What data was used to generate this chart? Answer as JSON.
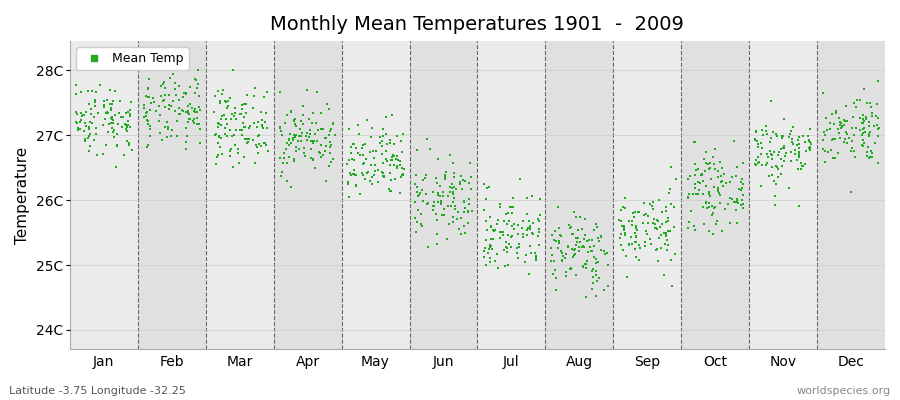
{
  "title": "Monthly Mean Temperatures 1901  -  2009",
  "ylabel": "Temperature",
  "bottom_left": "Latitude -3.75 Longitude -32.25",
  "bottom_right": "worldspecies.org",
  "legend_label": "Mean Temp",
  "yticks": [
    24,
    25,
    26,
    27,
    28
  ],
  "ylabels": [
    "24C",
    "25C",
    "26C",
    "27C",
    "28C"
  ],
  "ylim": [
    23.7,
    28.45
  ],
  "months": [
    "Jan",
    "Feb",
    "Mar",
    "Apr",
    "May",
    "Jun",
    "Jul",
    "Aug",
    "Sep",
    "Oct",
    "Nov",
    "Dec"
  ],
  "dot_color": "#22aa22",
  "bg_color": "#ebebeb",
  "band_color_odd": "#ebebeb",
  "band_color_even": "#e0e0e0",
  "n_years": 109,
  "seed": 42,
  "monthly_means": [
    27.25,
    27.35,
    27.15,
    26.95,
    26.55,
    26.0,
    25.5,
    25.2,
    25.55,
    26.15,
    26.75,
    27.1
  ],
  "monthly_stds": [
    0.28,
    0.28,
    0.28,
    0.28,
    0.3,
    0.32,
    0.32,
    0.3,
    0.3,
    0.28,
    0.28,
    0.28
  ]
}
